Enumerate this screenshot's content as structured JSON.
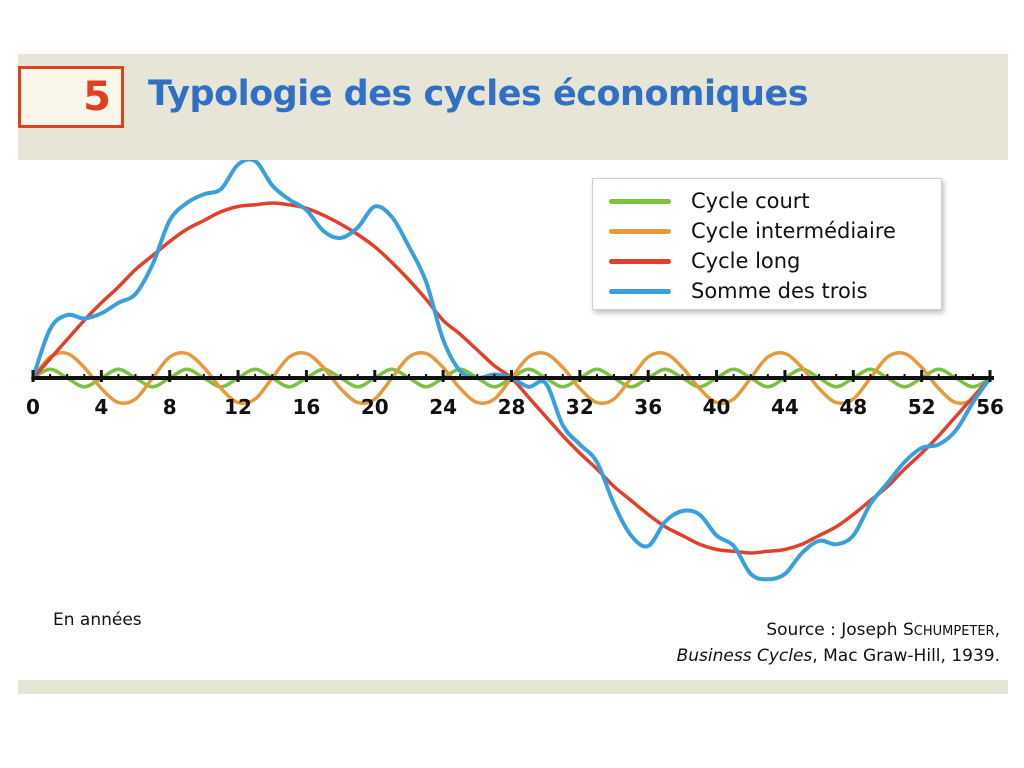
{
  "figure": {
    "number": "5",
    "title": "Typologie des cycles économiques",
    "x_axis_label": "En années",
    "source_prefix": "Source : Joseph ",
    "source_author": "Schumpeter",
    "source_book": "Business Cycles",
    "source_rest": ", Mac Graw-Hill, 1939."
  },
  "colors": {
    "number_box": "#e0401f",
    "title": "#2f6fc4",
    "court": "#7cc142",
    "intermediaire": "#e69a3c",
    "long": "#e2402b",
    "somme": "#3aa0dc"
  },
  "chart_data": {
    "type": "line",
    "title": "Typologie des cycles économiques",
    "xlabel": "En années",
    "ylabel": "",
    "x_ticks": [
      0,
      4,
      8,
      12,
      16,
      20,
      24,
      28,
      32,
      36,
      40,
      44,
      48,
      52,
      56
    ],
    "xlim": [
      0,
      56
    ],
    "ylim": [
      -1.25,
      1.25
    ],
    "grid": false,
    "legend_position": "top-right",
    "x": [
      0,
      1,
      2,
      3,
      4,
      5,
      6,
      7,
      8,
      9,
      10,
      11,
      12,
      13,
      14,
      15,
      16,
      17,
      18,
      19,
      20,
      21,
      22,
      23,
      24,
      25,
      26,
      27,
      28,
      29,
      30,
      31,
      32,
      33,
      34,
      35,
      36,
      37,
      38,
      39,
      40,
      41,
      42,
      43,
      44,
      45,
      46,
      47,
      48,
      49,
      50,
      51,
      52,
      53,
      54,
      55,
      56
    ],
    "series": [
      {
        "name": "Cycle court",
        "color": "#7cc142",
        "values": [
          0,
          0.05,
          0,
          -0.05,
          0,
          0.05,
          0,
          -0.05,
          0,
          0.05,
          0,
          -0.05,
          0,
          0.05,
          0,
          -0.05,
          0,
          0.05,
          0,
          -0.05,
          0,
          0.05,
          0,
          -0.05,
          0,
          0.05,
          0,
          -0.05,
          0,
          0.05,
          0,
          -0.05,
          0,
          0.05,
          0,
          -0.05,
          0,
          0.05,
          0,
          -0.05,
          0,
          0.05,
          0,
          -0.05,
          0,
          0.05,
          0,
          -0.05,
          0,
          0.05,
          0,
          -0.05,
          0,
          0.05,
          0,
          -0.05,
          0
        ]
      },
      {
        "name": "Cycle intermédiaire",
        "color": "#e69a3c",
        "values": [
          0,
          0.12,
          0.14,
          0.06,
          -0.06,
          -0.14,
          -0.12,
          0,
          0.12,
          0.14,
          0.06,
          -0.06,
          -0.14,
          -0.12,
          0,
          0.12,
          0.14,
          0.06,
          -0.06,
          -0.14,
          -0.12,
          0,
          0.12,
          0.14,
          0.06,
          -0.06,
          -0.14,
          -0.12,
          0,
          0.12,
          0.14,
          0.06,
          -0.06,
          -0.14,
          -0.12,
          0,
          0.12,
          0.14,
          0.06,
          -0.06,
          -0.14,
          -0.12,
          0,
          0.12,
          0.14,
          0.06,
          -0.06,
          -0.14,
          -0.12,
          0,
          0.12,
          0.14,
          0.06,
          -0.06,
          -0.14,
          -0.12,
          0
        ]
      },
      {
        "name": "Cycle long",
        "color": "#e2402b",
        "values": [
          0,
          0.11,
          0.22,
          0.33,
          0.43,
          0.52,
          0.62,
          0.7,
          0.78,
          0.85,
          0.9,
          0.95,
          0.98,
          0.99,
          1,
          0.99,
          0.97,
          0.93,
          0.88,
          0.82,
          0.75,
          0.66,
          0.56,
          0.45,
          0.33,
          0.25,
          0.16,
          0.07,
          0,
          -0.11,
          -0.22,
          -0.33,
          -0.43,
          -0.52,
          -0.62,
          -0.7,
          -0.78,
          -0.85,
          -0.9,
          -0.95,
          -0.98,
          -0.99,
          -1,
          -0.99,
          -0.98,
          -0.95,
          -0.9,
          -0.85,
          -0.78,
          -0.7,
          -0.62,
          -0.52,
          -0.43,
          -0.33,
          -0.22,
          -0.11,
          0
        ]
      },
      {
        "name": "Somme des trois",
        "color": "#3aa0dc",
        "values": [
          0,
          0.28,
          0.36,
          0.34,
          0.37,
          0.43,
          0.48,
          0.65,
          0.9,
          1.0,
          1.05,
          1.08,
          1.22,
          1.24,
          1.1,
          1.02,
          0.96,
          0.84,
          0.8,
          0.86,
          0.98,
          0.92,
          0.75,
          0.55,
          0.22,
          0.04,
          0,
          0.02,
          0,
          -0.05,
          -0.03,
          -0.27,
          -0.38,
          -0.48,
          -0.72,
          -0.9,
          -0.96,
          -0.82,
          -0.76,
          -0.78,
          -0.9,
          -0.96,
          -1.12,
          -1.15,
          -1.12,
          -1.0,
          -0.93,
          -0.95,
          -0.9,
          -0.72,
          -0.6,
          -0.48,
          -0.4,
          -0.38,
          -0.3,
          -0.14,
          0
        ]
      }
    ]
  }
}
